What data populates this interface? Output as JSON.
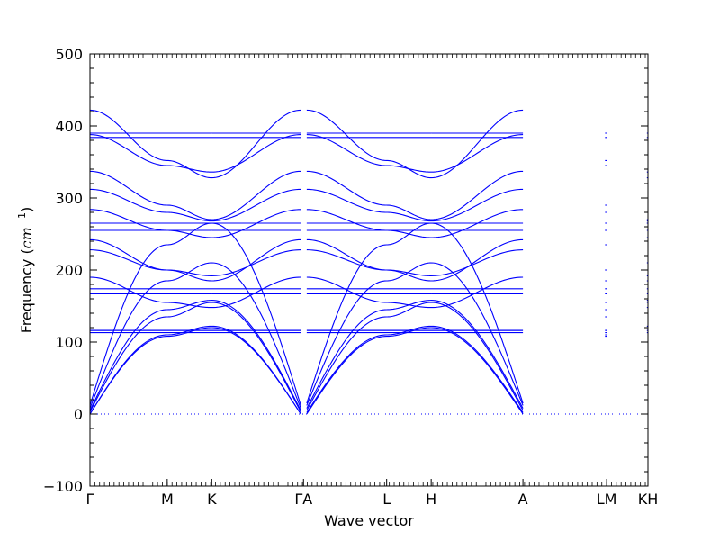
{
  "chart_data": {
    "type": "line",
    "title": "",
    "xlabel": "Wave vector",
    "ylabel_text": "Frequency (",
    "ylabel_unit_base": "cm",
    "ylabel_unit_exp": "−1",
    "ylabel_close": ")",
    "ylim": [
      -100,
      500
    ],
    "yticks": [
      -100,
      0,
      100,
      200,
      300,
      400,
      500
    ],
    "grid": false,
    "line_color": "#0000ff",
    "zero_line_color": "#0000ff",
    "xlim": [
      0,
      10.4
    ],
    "x_ticks": [
      {
        "label": "Γ",
        "x": 0.0
      },
      {
        "label": "M",
        "x": 1.44
      },
      {
        "label": "K",
        "x": 2.27
      },
      {
        "label": "ΓA",
        "x": 3.98
      },
      {
        "label": "L",
        "x": 5.53
      },
      {
        "label": "H",
        "x": 6.36
      },
      {
        "label": "A",
        "x": 8.07
      },
      {
        "label": "LM",
        "x": 9.63
      },
      {
        "label": "KH",
        "x": 10.4
      }
    ],
    "segments": [
      {
        "from": "Γ",
        "to": "M",
        "x": [
          0.0,
          1.44
        ]
      },
      {
        "from": "M",
        "to": "K",
        "x": [
          1.44,
          2.27
        ]
      },
      {
        "from": "K",
        "to": "Γ",
        "x": [
          2.27,
          3.93
        ]
      },
      {
        "from": "A",
        "to": "L",
        "x": [
          4.04,
          5.53
        ]
      },
      {
        "from": "L",
        "to": "H",
        "x": [
          5.53,
          6.36
        ]
      },
      {
        "from": "H",
        "to": "A",
        "x": [
          6.36,
          8.07
        ]
      },
      {
        "from": "L",
        "to": "M",
        "x": [
          9.6,
          9.63
        ]
      },
      {
        "from": "K",
        "to": "H",
        "x": [
          10.38,
          10.4
        ]
      }
    ],
    "series": [
      {
        "values": {
          "Γ": 0,
          "M": 108,
          "K": 120,
          "A": 0,
          "L": 108,
          "H": 120
        },
        "shape": "acoustic"
      },
      {
        "values": {
          "Γ": 0,
          "M": 110,
          "K": 122,
          "A": 2,
          "L": 110,
          "H": 122
        },
        "shape": "acoustic"
      },
      {
        "values": {
          "Γ": 3,
          "M": 135,
          "K": 155,
          "A": 5,
          "L": 135,
          "H": 155
        },
        "shape": "acoustic"
      },
      {
        "values": {
          "Γ": 5,
          "M": 145,
          "K": 158,
          "A": 8,
          "L": 145,
          "H": 158
        },
        "shape": "acoustic"
      },
      {
        "values": {
          "Γ": 8,
          "M": 185,
          "K": 210,
          "A": 12,
          "L": 185,
          "H": 210
        },
        "shape": "acoustic"
      },
      {
        "values": {
          "Γ": 12,
          "M": 235,
          "K": 265,
          "A": 15,
          "L": 235,
          "H": 265
        },
        "shape": "acoustic"
      },
      {
        "values": {
          "Γ": 113,
          "M": 113,
          "K": 113,
          "A": 113,
          "L": 113,
          "H": 113
        },
        "shape": "flat"
      },
      {
        "values": {
          "Γ": 116,
          "M": 116,
          "K": 116,
          "A": 116,
          "L": 116,
          "H": 116
        },
        "shape": "flat"
      },
      {
        "values": {
          "Γ": 118,
          "M": 118,
          "K": 118,
          "A": 118,
          "L": 118,
          "H": 118
        },
        "shape": "flat"
      },
      {
        "values": {
          "Γ": 167,
          "M": 167,
          "K": 167,
          "A": 167,
          "L": 167,
          "H": 167
        },
        "shape": "flat"
      },
      {
        "values": {
          "Γ": 174,
          "M": 174,
          "K": 174,
          "A": 174,
          "L": 174,
          "H": 174
        },
        "shape": "flat"
      },
      {
        "values": {
          "Γ": 190,
          "M": 155,
          "K": 148,
          "A": 190,
          "L": 155,
          "H": 148
        },
        "shape": "optic"
      },
      {
        "values": {
          "Γ": 228,
          "M": 200,
          "K": 192,
          "A": 228,
          "L": 200,
          "H": 192
        },
        "shape": "optic"
      },
      {
        "values": {
          "Γ": 242,
          "M": 200,
          "K": 185,
          "A": 242,
          "L": 200,
          "H": 185
        },
        "shape": "optic"
      },
      {
        "values": {
          "Γ": 255,
          "M": 255,
          "K": 255,
          "A": 255,
          "L": 255,
          "H": 255
        },
        "shape": "flat"
      },
      {
        "values": {
          "Γ": 265,
          "M": 265,
          "K": 265,
          "A": 265,
          "L": 265,
          "H": 265
        },
        "shape": "flat"
      },
      {
        "values": {
          "Γ": 284,
          "M": 255,
          "K": 245,
          "A": 284,
          "L": 255,
          "H": 245
        },
        "shape": "optic"
      },
      {
        "values": {
          "Γ": 312,
          "M": 280,
          "K": 268,
          "A": 312,
          "L": 280,
          "H": 268
        },
        "shape": "optic"
      },
      {
        "values": {
          "Γ": 337,
          "M": 290,
          "K": 270,
          "A": 337,
          "L": 290,
          "H": 270
        },
        "shape": "optic"
      },
      {
        "values": {
          "Γ": 384,
          "M": 384,
          "K": 384,
          "A": 384,
          "L": 384,
          "H": 384
        },
        "shape": "flat"
      },
      {
        "values": {
          "Γ": 390,
          "M": 390,
          "K": 390,
          "A": 390,
          "L": 390,
          "H": 390
        },
        "shape": "flat"
      },
      {
        "values": {
          "Γ": 388,
          "M": 345,
          "K": 336,
          "A": 388,
          "L": 345,
          "H": 336
        },
        "shape": "optic"
      },
      {
        "values": {
          "Γ": 422,
          "M": 352,
          "K": 328,
          "A": 422,
          "L": 352,
          "H": 328
        },
        "shape": "optic"
      }
    ]
  }
}
